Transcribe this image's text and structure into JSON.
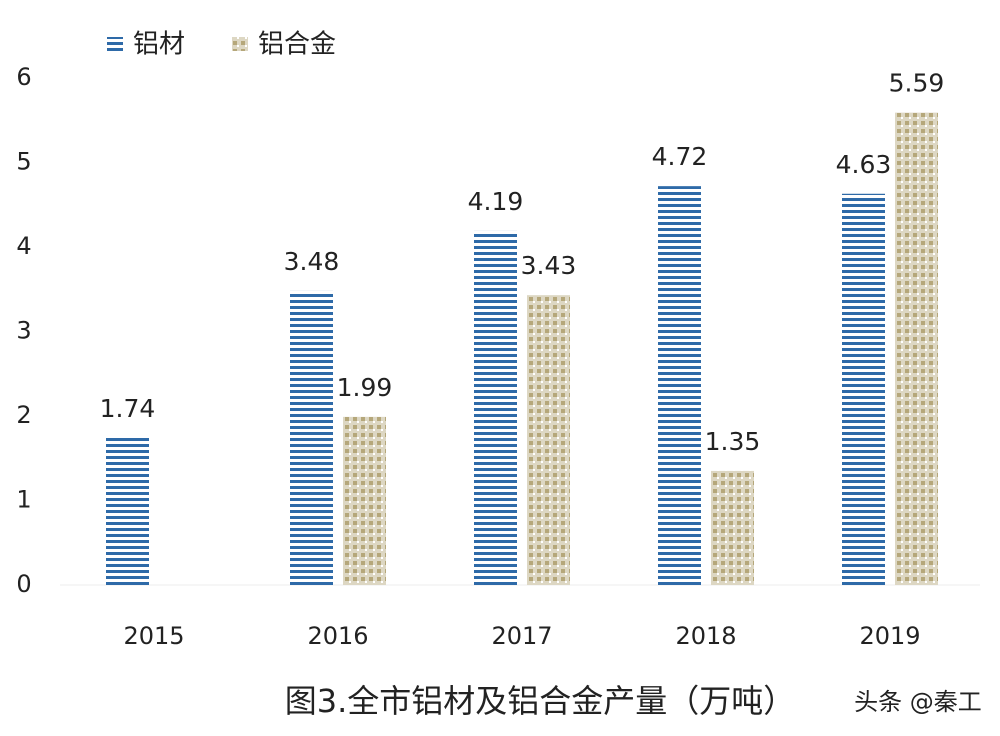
{
  "chart_data": {
    "type": "bar",
    "title": "图3.全市铝材及铝合金产量（万吨）",
    "watermark": "头条 @秦工",
    "categories": [
      "2015",
      "2016",
      "2017",
      "2018",
      "2019"
    ],
    "series": [
      {
        "name": "铝材",
        "color": "#2e6aa8",
        "values": [
          1.74,
          3.48,
          4.19,
          4.72,
          4.63
        ]
      },
      {
        "name": "铝合金",
        "color": "#b5a77a",
        "values": [
          null,
          1.99,
          3.43,
          1.35,
          5.59
        ]
      }
    ],
    "ylim": [
      0,
      6
    ],
    "yticks": [
      0,
      1,
      2,
      3,
      4,
      5,
      6
    ],
    "grid": false
  }
}
